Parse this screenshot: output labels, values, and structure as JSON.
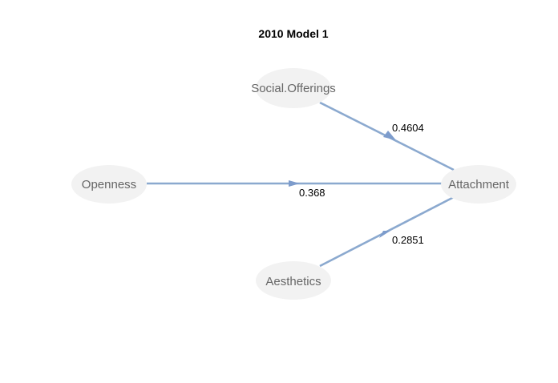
{
  "title": "2010 Model 1",
  "nodes": {
    "social_offerings": "Social.Offerings",
    "openness": "Openness",
    "aesthetics": "Aesthetics",
    "attachment": "Attachment"
  },
  "edges": [
    {
      "from": "Social.Offerings",
      "to": "Attachment",
      "weight": "0.4604"
    },
    {
      "from": "Openness",
      "to": "Attachment",
      "weight": "0.368"
    },
    {
      "from": "Aesthetics",
      "to": "Attachment",
      "weight": "0.2851"
    }
  ],
  "colors": {
    "edge": "#8ba9cf",
    "node_fill": "#f2f2f2",
    "node_text": "#666666"
  }
}
